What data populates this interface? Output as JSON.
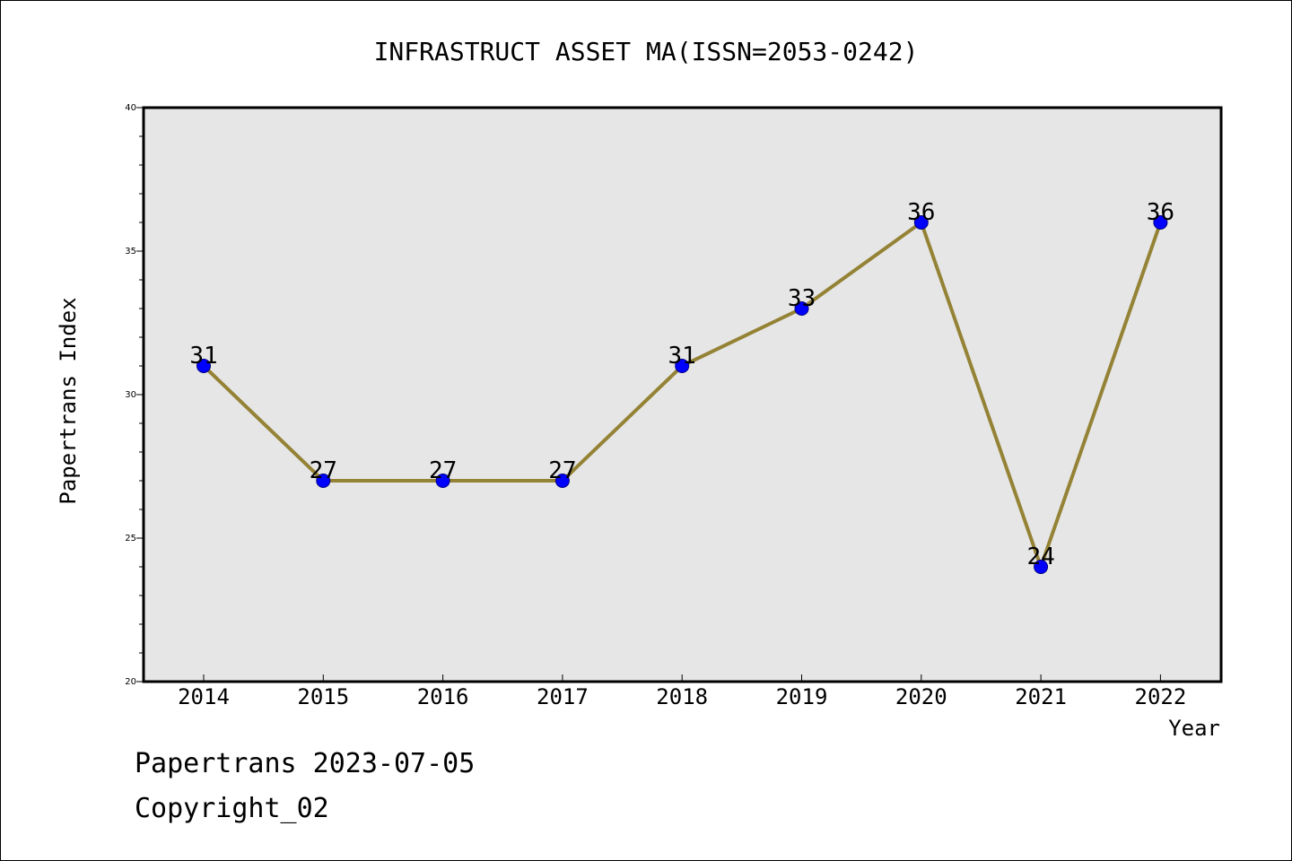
{
  "chart_data": {
    "type": "line",
    "title": "INFRASTRUCT ASSET MA(ISSN=2053-0242)",
    "xlabel": "Year",
    "ylabel": "Papertrans Index",
    "categories": [
      "2014",
      "2015",
      "2016",
      "2017",
      "2018",
      "2019",
      "2020",
      "2021",
      "2022"
    ],
    "series": [
      {
        "values": [
          31,
          27,
          27,
          27,
          31,
          33,
          36,
          24,
          36
        ]
      }
    ],
    "data_labels": [
      "31",
      "27",
      "27",
      "27",
      "31",
      "33",
      "36",
      "24",
      "36"
    ],
    "yticks": [
      "20",
      "25",
      "30",
      "35",
      "40"
    ],
    "ylim": [
      20,
      40
    ],
    "grid": false,
    "legend": "none",
    "colors": {
      "plot_background": "#e6e6e6",
      "line": "#948235",
      "marker_fill": "#0000ff",
      "marker_edge": "#000080"
    }
  },
  "footer": {
    "line1": "Papertrans 2023-07-05",
    "line2": "Copyright_02"
  }
}
